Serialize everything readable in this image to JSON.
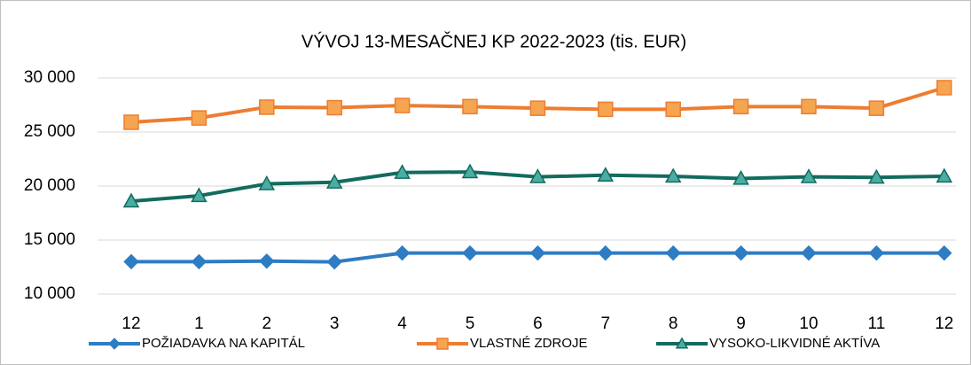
{
  "chart_data": {
    "type": "line",
    "title": "VÝVOJ 13-MESAČNEJ KP 2022-2023 (tis. EUR)",
    "categories": [
      "12",
      "1",
      "2",
      "3",
      "4",
      "5",
      "6",
      "7",
      "8",
      "9",
      "10",
      "11",
      "12"
    ],
    "series": [
      {
        "name": "POŽIADAVKA NA KAPITÁL",
        "color": "#2e7cc4",
        "marker": "diamond",
        "values": [
          13000,
          13000,
          13050,
          12980,
          13800,
          13800,
          13800,
          13800,
          13800,
          13800,
          13800,
          13800,
          13800
        ]
      },
      {
        "name": "VLASTNÉ ZDROJE",
        "color": "#ed7d31",
        "marker": "square",
        "values": [
          25900,
          26300,
          27300,
          27250,
          27450,
          27350,
          27200,
          27100,
          27100,
          27350,
          27350,
          27200,
          29100
        ]
      },
      {
        "name": "VYSOKO-LIKVIDNÉ AKTÍVA",
        "color": "#136b5e",
        "marker": "triangle",
        "values": [
          18600,
          19100,
          20200,
          20350,
          21250,
          21300,
          20850,
          21000,
          20900,
          20700,
          20850,
          20800,
          20900
        ]
      }
    ],
    "ylim": [
      10000,
      30000
    ],
    "yticks": [
      {
        "value": 10000,
        "label": "10 000"
      },
      {
        "value": 15000,
        "label": "15 000"
      },
      {
        "value": 20000,
        "label": "20 000"
      },
      {
        "value": 25000,
        "label": "25 000"
      },
      {
        "value": 30000,
        "label": "30 000"
      }
    ],
    "grid": true,
    "legend": "bottom"
  }
}
